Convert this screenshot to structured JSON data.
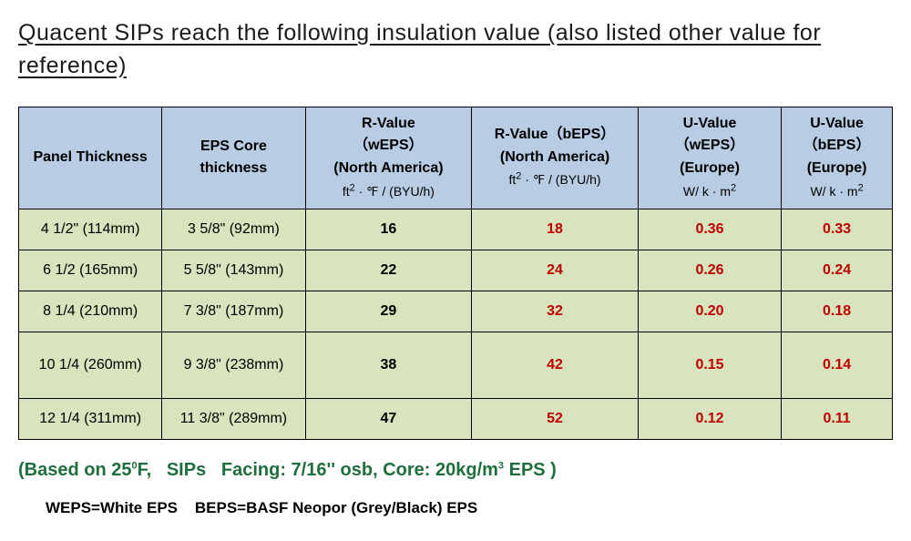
{
  "title": "Quacent SIPs reach the following insulation value (also listed other value for reference)",
  "table": {
    "header_bg": "#b8cde4",
    "row_bg": "#d7e4bd",
    "border_color": "#000000",
    "red_color": "#c00000",
    "columns": [
      {
        "key": "panel",
        "label": "Panel Thickness",
        "unit": ""
      },
      {
        "key": "core",
        "label": "EPS Core thickness",
        "unit": ""
      },
      {
        "key": "rw",
        "label": "R-Value （wEPS）\n(North America)",
        "unit": "ft² · ℉ / (BYU/h)"
      },
      {
        "key": "rb",
        "label": "R-Value（bEPS）\n(North America)",
        "unit": "ft² · ℉ / (BYU/h)"
      },
      {
        "key": "uw",
        "label": "U-Value （wEPS）\n(Europe)",
        "unit": "W/ k · m²"
      },
      {
        "key": "ub",
        "label": "U-Value （bEPS）\n(Europe)",
        "unit": "W/ k · m²"
      }
    ],
    "rows": [
      {
        "panel": "4 1/2\" (114mm)",
        "core": "3 5/8\" (92mm)",
        "rw": "16",
        "rb": "18",
        "uw": "0.36",
        "ub": "0.33",
        "tall": false
      },
      {
        "panel": "6 1/2 (165mm)",
        "core": "5 5/8\" (143mm)",
        "rw": "22",
        "rb": "24",
        "uw": "0.26",
        "ub": "0.24",
        "tall": false
      },
      {
        "panel": "8 1/4 (210mm)",
        "core": "7 3/8\" (187mm)",
        "rw": "29",
        "rb": "32",
        "uw": "0.20",
        "ub": "0.18",
        "tall": false
      },
      {
        "panel": "10 1/4 (260mm)",
        "core": "9 3/8\" (238mm)",
        "rw": "38",
        "rb": "42",
        "uw": "0.15",
        "ub": "0.14",
        "tall": true
      },
      {
        "panel": "12 1/4 (311mm)",
        "core": "11 3/8\" (289mm)",
        "rw": "47",
        "rb": "52",
        "uw": "0.12",
        "ub": "0.11",
        "tall": false
      }
    ]
  },
  "note_html": "(Based on 25<sup>0</sup>F,&nbsp;&nbsp;&nbsp;SIPs&nbsp;&nbsp;&nbsp;Facing: 7/16'' osb, Core: 20kg/m<sup>3</sup> EPS )",
  "legend_html": "WEPS=White EPS&nbsp;&nbsp;&nbsp;&nbsp;BEPS=BASF Neopor (Grey/Black) EPS"
}
